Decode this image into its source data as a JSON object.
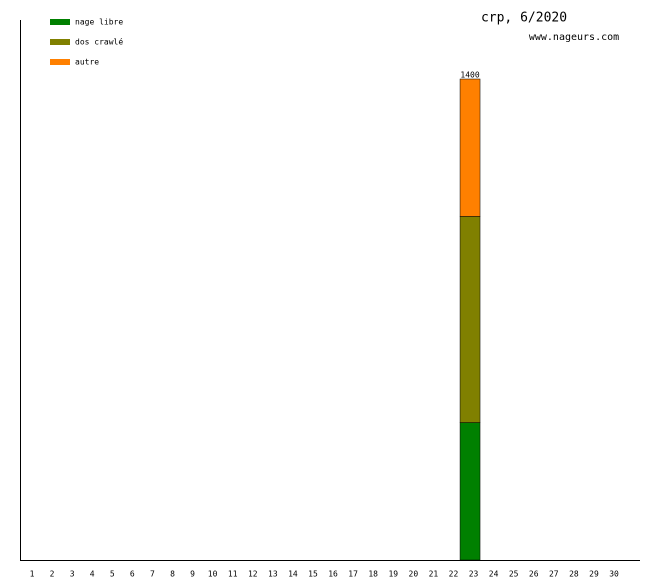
{
  "chart_data": {
    "type": "stacked_bar",
    "title": "crp, 6/2020",
    "subtitle": "www.nageurs.com",
    "categories": [
      1,
      2,
      3,
      4,
      5,
      6,
      7,
      8,
      9,
      10,
      11,
      12,
      13,
      14,
      15,
      16,
      17,
      18,
      19,
      20,
      21,
      22,
      23,
      24,
      25,
      26,
      27,
      28,
      29,
      30
    ],
    "series": [
      {
        "name": "nage libre",
        "color": "#008000",
        "values": [
          0,
          0,
          0,
          0,
          0,
          0,
          0,
          0,
          0,
          0,
          0,
          0,
          0,
          0,
          0,
          0,
          0,
          0,
          0,
          0,
          0,
          0,
          400,
          0,
          0,
          0,
          0,
          0,
          0,
          0
        ]
      },
      {
        "name": "dos crawlé",
        "color": "#808000",
        "values": [
          0,
          0,
          0,
          0,
          0,
          0,
          0,
          0,
          0,
          0,
          0,
          0,
          0,
          0,
          0,
          0,
          0,
          0,
          0,
          0,
          0,
          0,
          600,
          0,
          0,
          0,
          0,
          0,
          0,
          0
        ]
      },
      {
        "name": "autre",
        "color": "#ff8000",
        "values": [
          0,
          0,
          0,
          0,
          0,
          0,
          0,
          0,
          0,
          0,
          0,
          0,
          0,
          0,
          0,
          0,
          0,
          0,
          0,
          0,
          0,
          0,
          400,
          0,
          0,
          0,
          0,
          0,
          0,
          0
        ]
      }
    ],
    "totals": [
      null,
      null,
      null,
      null,
      null,
      null,
      null,
      null,
      null,
      null,
      null,
      null,
      null,
      null,
      null,
      null,
      null,
      null,
      null,
      null,
      null,
      null,
      1400,
      null,
      null,
      null,
      null,
      null,
      null,
      null
    ]
  }
}
